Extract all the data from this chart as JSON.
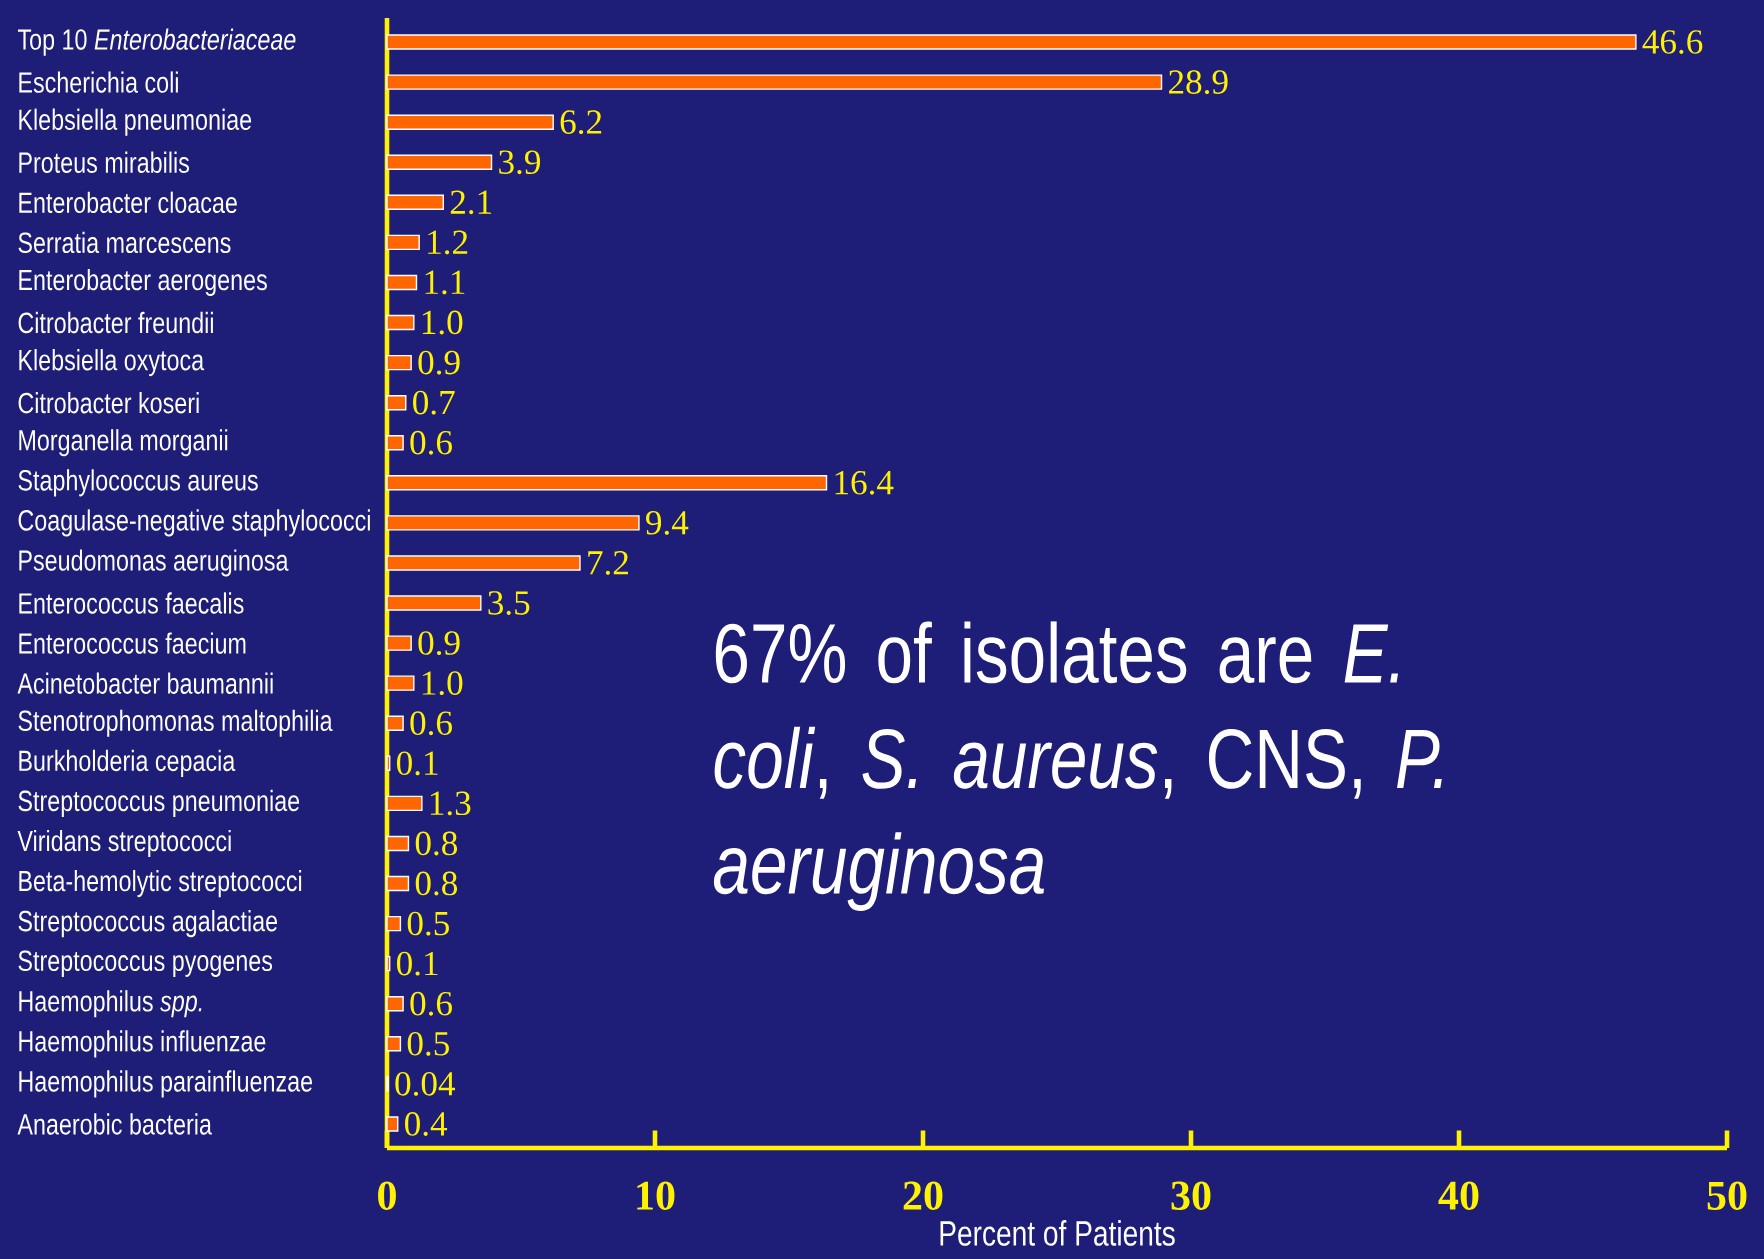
{
  "chart_data": {
    "type": "bar",
    "orientation": "horizontal",
    "color": "#ff6600",
    "categories": [
      "Top 10 *Enterobacteriaceae*",
      "Escherichia coli",
      "Klebsiella pneumoniae",
      "Proteus mirabilis",
      "Enterobacter cloacae",
      "Serratia marcescens",
      "Enterobacter aerogenes",
      "Citrobacter freundii",
      "Klebsiella oxytoca",
      "Citrobacter koseri",
      "Morganella morganii",
      "Staphylococcus aureus",
      "Coagulase-negative staphylococci",
      "Pseudomonas aeruginosa",
      "Enterococcus faecalis",
      "Enterococcus faecium",
      "Acinetobacter baumannii",
      "Stenotrophomonas maltophilia",
      "Burkholderia cepacia",
      "Streptococcus pneumoniae",
      "Viridans streptococci",
      "Beta-hemolytic streptococci",
      "Streptococcus agalactiae",
      "Streptococcus pyogenes",
      "Haemophilus *spp.*",
      "Haemophilus influenzae",
      "Haemophilus parainfluenzae",
      "Anaerobic bacteria"
    ],
    "values": [
      46.6,
      28.9,
      6.2,
      3.9,
      2.1,
      1.2,
      1.1,
      1.0,
      0.9,
      0.7,
      0.6,
      16.4,
      9.4,
      7.2,
      3.5,
      0.9,
      1.0,
      0.6,
      0.1,
      1.3,
      0.8,
      0.8,
      0.5,
      0.1,
      0.6,
      0.5,
      0.04,
      0.4
    ],
    "value_labels": [
      "46.6",
      "28.9",
      "6.2",
      "3.9",
      "2.1",
      "1.2",
      "1.1",
      "1.0",
      "0.9",
      "0.7",
      "0.6",
      "16.4",
      "9.4",
      "7.2",
      "3.5",
      "0.9",
      "1.0",
      "0.6",
      "0.1",
      "1.3",
      "0.8",
      "0.8",
      "0.5",
      "0.1",
      "0.6",
      "0.5",
      "0.04",
      "0.4"
    ],
    "xlim": [
      0,
      50
    ],
    "xticks": [
      0,
      10,
      20,
      30,
      40,
      50
    ],
    "xlabel": "Percent of Patients",
    "annotations": [
      "67% of isolates are *E. coli*, *S. aureus*, CNS, *P. aeruginosa*"
    ]
  }
}
